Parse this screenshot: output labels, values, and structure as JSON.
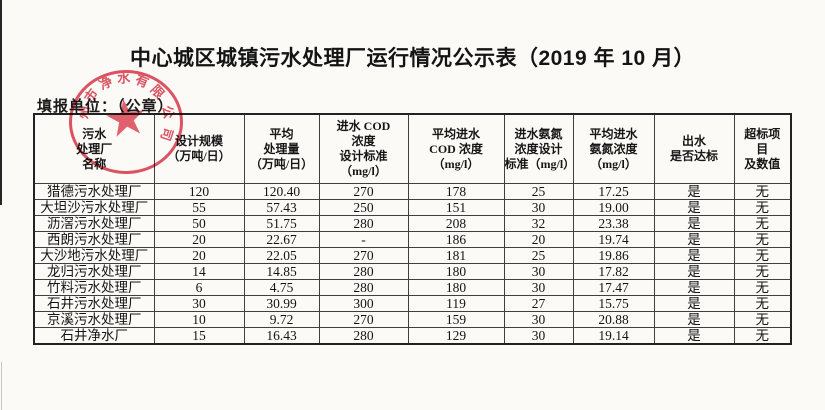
{
  "document": {
    "title": "中心城区城镇污水处理厂运行情况公示表（2019 年 10 月）",
    "filing_unit_label": "填报单位：（公章）"
  },
  "stamp": {
    "color": "#dd4555",
    "star": "★",
    "arc_chars": [
      {
        "char": "州",
        "angle": -78
      },
      {
        "char": "市",
        "angle": -54
      },
      {
        "char": "净",
        "angle": -28
      },
      {
        "char": "水",
        "angle": -3
      },
      {
        "char": "有",
        "angle": 22
      },
      {
        "char": "限",
        "angle": 47
      },
      {
        "char": "公",
        "angle": 78
      },
      {
        "char": "司",
        "angle": 108
      }
    ]
  },
  "table": {
    "columns": [
      {
        "key": "plant_name",
        "label": "污水\n处理厂\n名称"
      },
      {
        "key": "design_scale",
        "label": "设计规模\n（万吨/日）"
      },
      {
        "key": "avg_treatment",
        "label": "平均\n处理量\n（万吨/日）"
      },
      {
        "key": "inlet_cod_design_std",
        "label": "进水 COD\n浓度\n设计标准\n（mg/l）"
      },
      {
        "key": "avg_inlet_cod",
        "label": "平均进水\nCOD 浓度\n（mg/l）"
      },
      {
        "key": "inlet_nh3_design_std",
        "label": "进水氨氮\n浓度设计\n标准（mg/l）"
      },
      {
        "key": "avg_inlet_nh3",
        "label": "平均进水\n氨氮浓度\n（mg/l）"
      },
      {
        "key": "outlet_compliance",
        "label": "出水\n是否达标"
      },
      {
        "key": "exceed_items",
        "label": "超标项\n目\n及数值"
      }
    ],
    "rows": [
      {
        "plant_name": "猎德污水处理厂",
        "design_scale": "120",
        "avg_treatment": "120.40",
        "inlet_cod_design_std": "270",
        "avg_inlet_cod": "178",
        "inlet_nh3_design_std": "25",
        "avg_inlet_nh3": "17.25",
        "outlet_compliance": "是",
        "exceed_items": "无"
      },
      {
        "plant_name": "大坦沙污水处理厂",
        "design_scale": "55",
        "avg_treatment": "57.43",
        "inlet_cod_design_std": "250",
        "avg_inlet_cod": "151",
        "inlet_nh3_design_std": "30",
        "avg_inlet_nh3": "19.00",
        "outlet_compliance": "是",
        "exceed_items": "无"
      },
      {
        "plant_name": "沥滘污水处理厂",
        "design_scale": "50",
        "avg_treatment": "51.75",
        "inlet_cod_design_std": "280",
        "avg_inlet_cod": "208",
        "inlet_nh3_design_std": "32",
        "avg_inlet_nh3": "23.38",
        "outlet_compliance": "是",
        "exceed_items": "无"
      },
      {
        "plant_name": "西朗污水处理厂",
        "design_scale": "20",
        "avg_treatment": "22.67",
        "inlet_cod_design_std": "-",
        "avg_inlet_cod": "186",
        "inlet_nh3_design_std": "20",
        "avg_inlet_nh3": "19.74",
        "outlet_compliance": "是",
        "exceed_items": "无"
      },
      {
        "plant_name": "大沙地污水处理厂",
        "design_scale": "20",
        "avg_treatment": "22.05",
        "inlet_cod_design_std": "270",
        "avg_inlet_cod": "181",
        "inlet_nh3_design_std": "25",
        "avg_inlet_nh3": "19.86",
        "outlet_compliance": "是",
        "exceed_items": "无"
      },
      {
        "plant_name": "龙归污水处理厂",
        "design_scale": "14",
        "avg_treatment": "14.85",
        "inlet_cod_design_std": "280",
        "avg_inlet_cod": "180",
        "inlet_nh3_design_std": "30",
        "avg_inlet_nh3": "17.82",
        "outlet_compliance": "是",
        "exceed_items": "无"
      },
      {
        "plant_name": "竹料污水处理厂",
        "design_scale": "6",
        "avg_treatment": "4.75",
        "inlet_cod_design_std": "280",
        "avg_inlet_cod": "180",
        "inlet_nh3_design_std": "30",
        "avg_inlet_nh3": "17.47",
        "outlet_compliance": "是",
        "exceed_items": "无"
      },
      {
        "plant_name": "石井污水处理厂",
        "design_scale": "30",
        "avg_treatment": "30.99",
        "inlet_cod_design_std": "300",
        "avg_inlet_cod": "119",
        "inlet_nh3_design_std": "27",
        "avg_inlet_nh3": "15.75",
        "outlet_compliance": "是",
        "exceed_items": "无"
      },
      {
        "plant_name": "京溪污水处理厂",
        "design_scale": "10",
        "avg_treatment": "9.72",
        "inlet_cod_design_std": "270",
        "avg_inlet_cod": "159",
        "inlet_nh3_design_std": "30",
        "avg_inlet_nh3": "20.88",
        "outlet_compliance": "是",
        "exceed_items": "无"
      },
      {
        "plant_name": "石井净水厂",
        "design_scale": "15",
        "avg_treatment": "16.43",
        "inlet_cod_design_std": "280",
        "avg_inlet_cod": "129",
        "inlet_nh3_design_std": "30",
        "avg_inlet_nh3": "19.14",
        "outlet_compliance": "是",
        "exceed_items": "无"
      }
    ]
  }
}
